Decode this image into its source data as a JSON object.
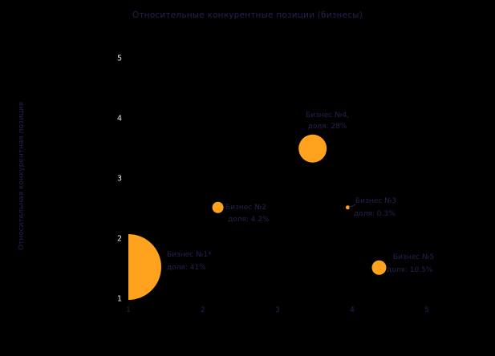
{
  "title": "Относительные конкурентные позиции (бизнесы)",
  "axes": {
    "y_label": "Относительная конкурентная позиция",
    "x_ticks": [
      "1",
      "2",
      "3",
      "4",
      "5"
    ],
    "y_ticks": [
      "1",
      "2",
      "3",
      "4",
      "5"
    ]
  },
  "colors": {
    "background": "#000000",
    "bubble": "#ffa31e",
    "dark_text": "#23234d",
    "y_tick_text": "#e9e9e9"
  },
  "chart_data": {
    "type": "scatter",
    "title": "Относительные конкурентные позиции (бизнесы)",
    "xlabel": "",
    "ylabel": "Относительная конкурентная позиция",
    "xlim": [
      1,
      5
    ],
    "ylim": [
      1,
      5
    ],
    "grid": false,
    "legend": "none",
    "bubble_color": "#ffa31e",
    "points": [
      {
        "name": "Бизнес №1*",
        "share_label": "доля: 41%",
        "x": 1.0,
        "y": 1.52,
        "r": 41
      },
      {
        "name": "Бизнес №2",
        "share_label": "доля: 4.2%",
        "x": 2.2,
        "y": 2.51,
        "r": 7
      },
      {
        "name": "Бизнес №3",
        "share_label": "доля: 0.3%",
        "x": 3.94,
        "y": 2.51,
        "r": 2.5
      },
      {
        "name": "Бизнес №4,",
        "share_label": "доля: 28%",
        "x": 3.47,
        "y": 3.49,
        "r": 17.5
      },
      {
        "name": "Бизнес №5",
        "share_label": "доля: 10.5%",
        "x": 4.36,
        "y": 1.51,
        "r": 9
      }
    ]
  }
}
